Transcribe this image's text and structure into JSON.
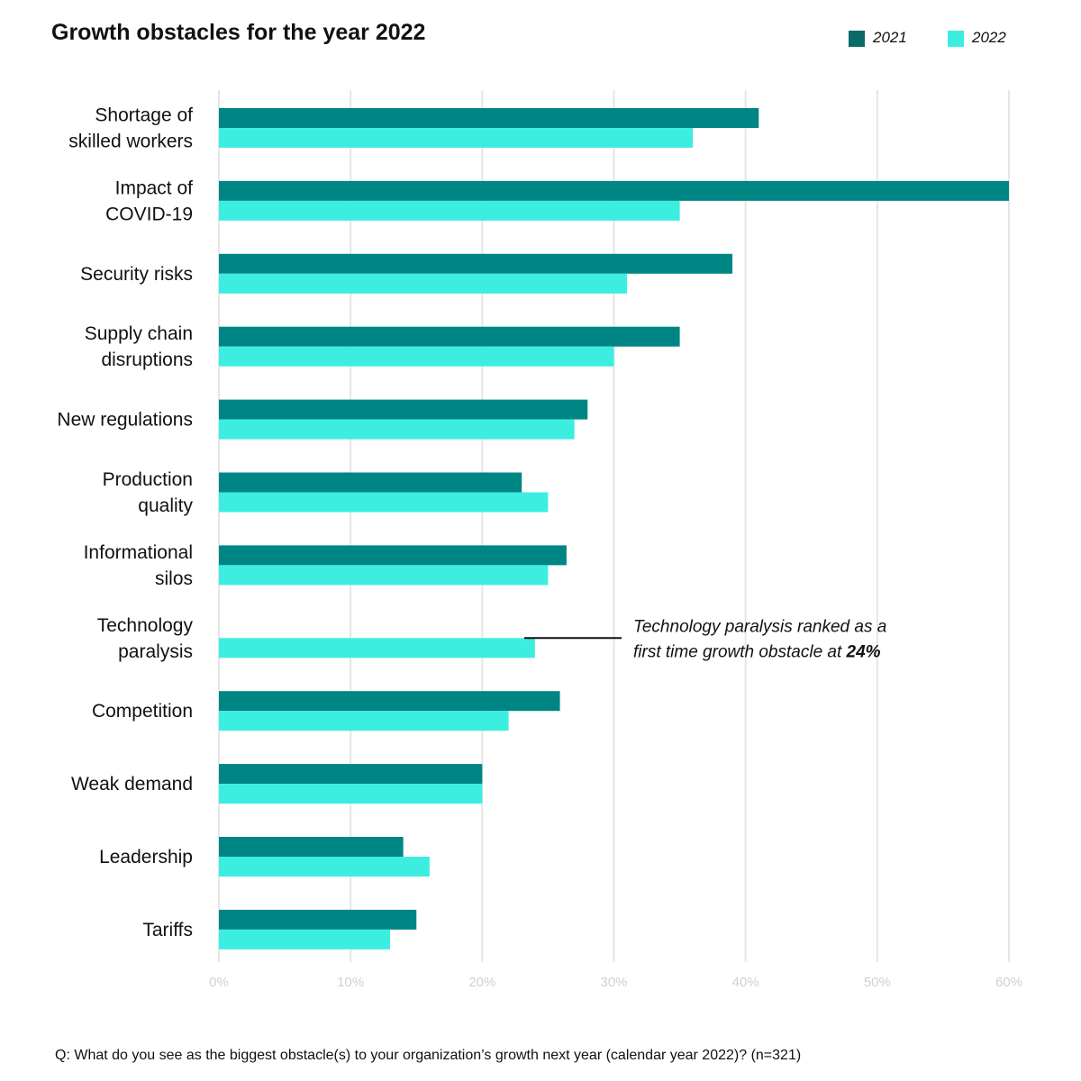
{
  "chart_data": {
    "type": "bar",
    "orientation": "horizontal",
    "title": "Growth obstacles for the year 2022",
    "categories": [
      "Shortage of\nskilled workers",
      "Impact of\nCOVID-19",
      "Security risks",
      "Supply chain\ndisruptions",
      "New regulations",
      "Production\nquality",
      "Informational\nsilos",
      "Technology\nparalysis",
      "Competition",
      "Weak demand",
      "Leadership",
      "Tariffs"
    ],
    "series": [
      {
        "name": "2021",
        "color": "#008585",
        "values": [
          41,
          60,
          39,
          35,
          28,
          23,
          26.4,
          null,
          25.9,
          20,
          14,
          15
        ]
      },
      {
        "name": "2022",
        "color": "#3ceee0",
        "values": [
          36,
          35,
          31,
          30,
          27,
          25,
          25,
          24,
          22,
          20,
          16,
          13
        ]
      }
    ],
    "x_ticks": [
      "0%",
      "10%",
      "20%",
      "30%",
      "40%",
      "50%",
      "60%"
    ],
    "xlim": [
      0,
      60
    ],
    "grid": true,
    "legend_position": "top-right",
    "annotation": {
      "category_index": 7,
      "line1": "Technology paralysis ranked as a",
      "line2_prefix": "first time growth obstacle at ",
      "line2_value": "24%"
    },
    "footnote": "Q: What do you see as the biggest obstacle(s) to your organization’s growth next year (calendar year 2022)? (n=321)"
  },
  "colors": {
    "grid": "#e6e6e6",
    "tick_label": "#d0d0d0",
    "legend_2021": "#0c6b68",
    "legend_2022": "#3ceee0"
  }
}
